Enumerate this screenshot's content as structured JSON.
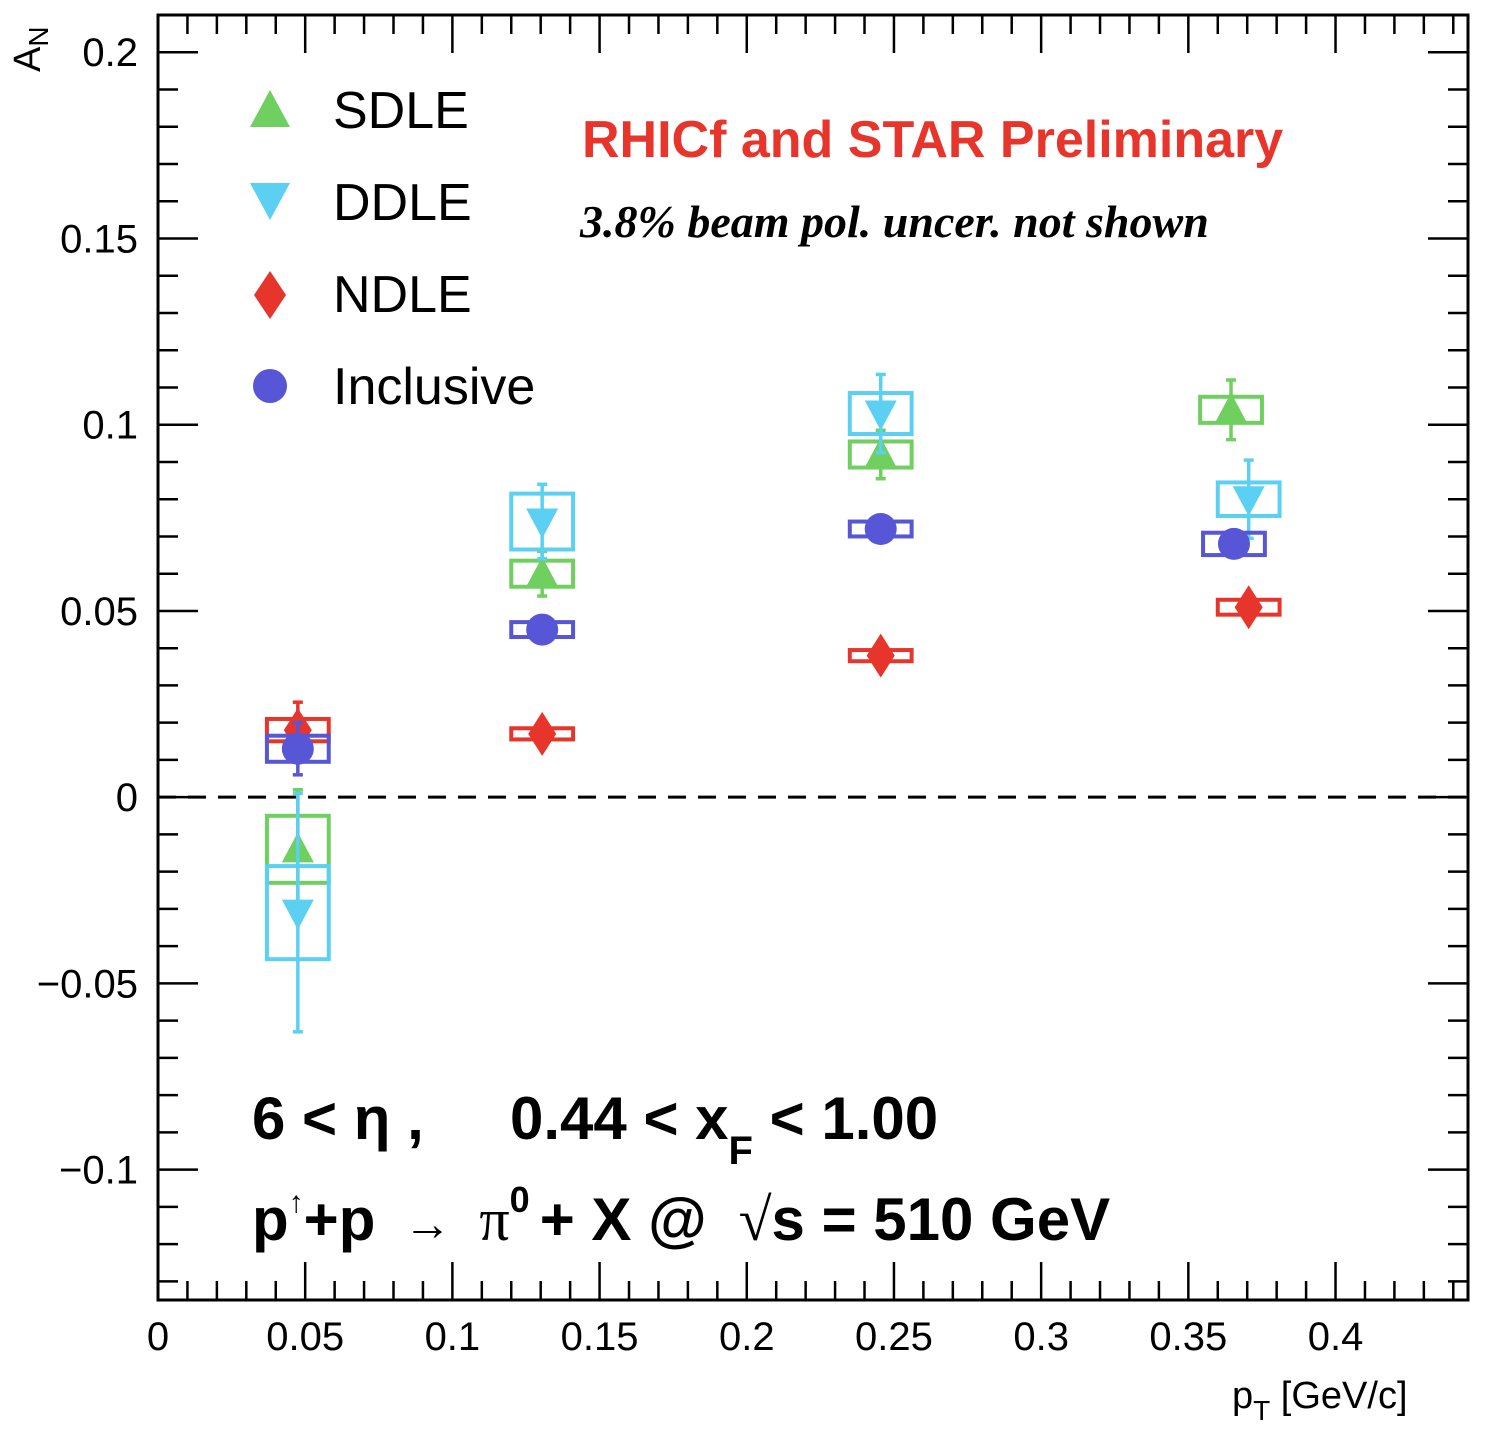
{
  "chart_data": {
    "type": "scatter",
    "xlabel": "p",
    "xlabel_sub": "T",
    "xlabel_unit": " [GeV/c]",
    "ylabel": "A",
    "ylabel_sub": "N",
    "xlim": [
      0,
      0.445
    ],
    "ylim": [
      -0.135,
      0.21
    ],
    "x_ticks": [
      {
        "value": 0,
        "label": "0"
      },
      {
        "value": 0.05,
        "label": "0.05"
      },
      {
        "value": 0.1,
        "label": "0.1"
      },
      {
        "value": 0.15,
        "label": "0.15"
      },
      {
        "value": 0.2,
        "label": "0.2"
      },
      {
        "value": 0.25,
        "label": "0.25"
      },
      {
        "value": 0.3,
        "label": "0.3"
      },
      {
        "value": 0.35,
        "label": "0.35"
      },
      {
        "value": 0.4,
        "label": "0.4"
      }
    ],
    "y_ticks": [
      {
        "value": -0.1,
        "label": "−0.1"
      },
      {
        "value": -0.05,
        "label": "−0.05"
      },
      {
        "value": 0,
        "label": "0"
      },
      {
        "value": 0.05,
        "label": "0.05"
      },
      {
        "value": 0.1,
        "label": "0.1"
      },
      {
        "value": 0.15,
        "label": "0.15"
      },
      {
        "value": 0.2,
        "label": "0.2"
      }
    ],
    "reference_line": {
      "y": 0,
      "style": "dashed"
    },
    "legend_position": "top-left",
    "series": [
      {
        "name": "SDLE",
        "marker": "triangle-up",
        "color": "#6fcf5f",
        "points": [
          {
            "x": 0.0475,
            "y": -0.014,
            "stat": 0.016,
            "sys": 0.009,
            "box_hw": 0.0105
          },
          {
            "x": 0.1305,
            "y": 0.06,
            "stat": 0.006,
            "sys": 0.0035,
            "box_hw": 0.0105
          },
          {
            "x": 0.2455,
            "y": 0.092,
            "stat": 0.0065,
            "sys": 0.0035,
            "box_hw": 0.0105
          },
          {
            "x": 0.3645,
            "y": 0.104,
            "stat": 0.008,
            "sys": 0.0035,
            "box_hw": 0.0105
          }
        ]
      },
      {
        "name": "DDLE",
        "marker": "triangle-down",
        "color": "#5bd0f2",
        "points": [
          {
            "x": 0.0475,
            "y": -0.031,
            "stat": 0.032,
            "sys": 0.0125,
            "box_hw": 0.0105
          },
          {
            "x": 0.1305,
            "y": 0.074,
            "stat": 0.01,
            "sys": 0.0075,
            "box_hw": 0.0105
          },
          {
            "x": 0.2455,
            "y": 0.103,
            "stat": 0.0105,
            "sys": 0.0055,
            "box_hw": 0.0105
          },
          {
            "x": 0.3705,
            "y": 0.08,
            "stat": 0.0105,
            "sys": 0.0045,
            "box_hw": 0.0105
          }
        ]
      },
      {
        "name": "NDLE",
        "marker": "diamond",
        "color": "#e8352b",
        "points": [
          {
            "x": 0.0475,
            "y": 0.018,
            "stat": 0.0075,
            "sys": 0.003,
            "box_hw": 0.0105
          },
          {
            "x": 0.1305,
            "y": 0.017,
            "stat": 0.002,
            "sys": 0.0015,
            "box_hw": 0.0105
          },
          {
            "x": 0.2455,
            "y": 0.038,
            "stat": 0.002,
            "sys": 0.0015,
            "box_hw": 0.0105
          },
          {
            "x": 0.3705,
            "y": 0.051,
            "stat": 0.002,
            "sys": 0.002,
            "box_hw": 0.0105
          }
        ]
      },
      {
        "name": "Inclusive",
        "marker": "circle",
        "color": "#5656d6",
        "points": [
          {
            "x": 0.0475,
            "y": 0.013,
            "stat": 0.007,
            "sys": 0.0035,
            "box_hw": 0.0105
          },
          {
            "x": 0.1305,
            "y": 0.045,
            "stat": 0.001,
            "sys": 0.002,
            "box_hw": 0.0105
          },
          {
            "x": 0.2455,
            "y": 0.072,
            "stat": 0.001,
            "sys": 0.002,
            "box_hw": 0.0105
          },
          {
            "x": 0.3655,
            "y": 0.068,
            "stat": 0.001,
            "sys": 0.003,
            "box_hw": 0.0105
          }
        ]
      }
    ]
  },
  "annotations": {
    "preliminary": "RHICf and STAR Preliminary",
    "preliminary_color": "#e8352b",
    "beam_note": "3.8% beam pol. uncer. not shown",
    "kin_eta": "6 < η ,",
    "kin_xf_pre": "0.44 < x",
    "kin_xf_sub": "F",
    "kin_xf_post": " < 1.00",
    "rxn_p1": "p",
    "rxn_spin": "↑",
    "rxn_p2": "+p",
    "rxn_arrow": "→",
    "rxn_pi": "π",
    "rxn_pi_sup": "0",
    "rxn_x": "+ X @",
    "rxn_sqrt": "√",
    "rxn_s": "s = 510 GeV"
  }
}
